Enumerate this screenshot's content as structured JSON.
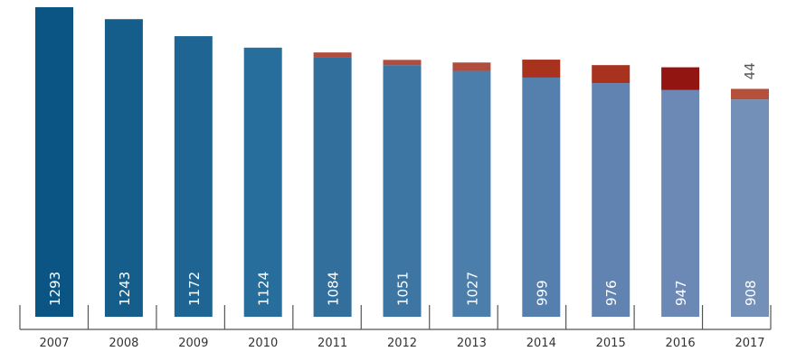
{
  "chart_data": {
    "type": "bar",
    "stacked": true,
    "categories": [
      "2007",
      "2008",
      "2009",
      "2010",
      "2011",
      "2012",
      "2013",
      "2014",
      "2015",
      "2016",
      "2017"
    ],
    "series": [
      {
        "values": [
          1293,
          1243,
          1172,
          1124,
          1084,
          1051,
          1027,
          999,
          976,
          947,
          908
        ],
        "colors": [
          "#0b5585",
          "#155e8c",
          "#1f6594",
          "#286e9c",
          "#336f9d",
          "#3d76a3",
          "#4b7eaa",
          "#557fad",
          "#6183b1",
          "#6b89b4",
          "#7390b8"
        ]
      },
      {
        "values": [
          null,
          null,
          null,
          null,
          20,
          22,
          35,
          75,
          75,
          95,
          44
        ],
        "colors": [
          "#b24d3d",
          "#b24d3d",
          "#b24d3d",
          "#b24d3d",
          "#b24d3d",
          "#b24d3d",
          "#b24d3d",
          "#a8321e",
          "#a8321e",
          "#921511",
          "#b5513a"
        ]
      }
    ],
    "visible_top_labels": [
      "",
      "",
      "",
      "",
      "",
      "",
      "",
      "",
      "",
      "",
      "44"
    ],
    "ylim": [
      0,
      1296
    ],
    "grid": false,
    "title": "",
    "xlabel": "",
    "ylabel": ""
  }
}
